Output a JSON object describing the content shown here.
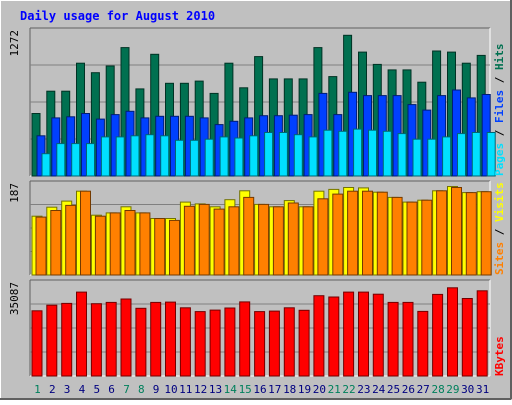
{
  "chart_data": [
    {
      "type": "bar",
      "title": "Daily usage for August 2010",
      "ylabel_max": "1272",
      "legend": [
        "Pages",
        "Files",
        "Hits"
      ],
      "legend_separator": "/",
      "categories": [
        "1",
        "2",
        "3",
        "4",
        "5",
        "6",
        "7",
        "8",
        "9",
        "10",
        "11",
        "12",
        "13",
        "14",
        "15",
        "16",
        "17",
        "18",
        "19",
        "20",
        "21",
        "22",
        "23",
        "24",
        "25",
        "26",
        "27",
        "28",
        "29",
        "30",
        "31"
      ],
      "ylim": [
        0,
        1272
      ],
      "series": [
        {
          "name": "Hits",
          "values": [
            560,
            760,
            760,
            1010,
            925,
            985,
            1150,
            780,
            1090,
            830,
            830,
            850,
            740,
            1010,
            790,
            1070,
            870,
            870,
            870,
            1150,
            890,
            1260,
            1110,
            1000,
            950,
            950,
            840,
            1120,
            1110,
            1010,
            1080
          ]
        },
        {
          "name": "Files",
          "values": [
            360,
            520,
            530,
            560,
            510,
            550,
            580,
            520,
            535,
            535,
            535,
            520,
            460,
            490,
            520,
            540,
            540,
            545,
            550,
            740,
            550,
            750,
            720,
            720,
            720,
            640,
            590,
            720,
            770,
            700,
            730
          ]
        },
        {
          "name": "Pages",
          "values": [
            200,
            290,
            290,
            290,
            350,
            350,
            360,
            370,
            360,
            320,
            320,
            330,
            350,
            340,
            360,
            390,
            390,
            370,
            350,
            410,
            400,
            420,
            410,
            400,
            380,
            330,
            330,
            350,
            380,
            390,
            390
          ]
        }
      ],
      "colors": {
        "Hits": "#007050",
        "Files": "#0040ff",
        "Pages": "#00e0ff"
      }
    },
    {
      "type": "bar",
      "ylabel_max": "187",
      "legend": [
        "Sites",
        "Visits"
      ],
      "legend_separator": "/",
      "categories": [
        "1",
        "2",
        "3",
        "4",
        "5",
        "6",
        "7",
        "8",
        "9",
        "10",
        "11",
        "12",
        "13",
        "14",
        "15",
        "16",
        "17",
        "18",
        "19",
        "20",
        "21",
        "22",
        "23",
        "24",
        "25",
        "26",
        "27",
        "28",
        "29",
        "30",
        "31"
      ],
      "ylim": [
        0,
        187
      ],
      "series": [
        {
          "name": "Visits",
          "values": [
            125,
            144,
            157,
            178,
            127,
            132,
            145,
            132,
            120,
            120,
            155,
            151,
            145,
            160,
            179,
            150,
            145,
            158,
            145,
            178,
            182,
            186,
            185,
            176,
            165,
            155,
            159,
            179,
            188,
            175,
            177
          ]
        },
        {
          "name": "Sites",
          "values": [
            123,
            137,
            148,
            178,
            125,
            132,
            137,
            132,
            120,
            116,
            146,
            150,
            140,
            145,
            165,
            150,
            145,
            153,
            145,
            162,
            172,
            178,
            178,
            176,
            165,
            155,
            159,
            179,
            186,
            175,
            177
          ]
        }
      ],
      "colors": {
        "Visits": "#ffff00",
        "Sites": "#ff8000"
      }
    },
    {
      "type": "bar",
      "ylabel_max": "35087",
      "legend": [
        "KBytes"
      ],
      "categories": [
        "1",
        "2",
        "3",
        "4",
        "5",
        "6",
        "7",
        "8",
        "9",
        "10",
        "11",
        "12",
        "13",
        "14",
        "15",
        "16",
        "17",
        "18",
        "19",
        "20",
        "21",
        "22",
        "23",
        "24",
        "25",
        "26",
        "27",
        "28",
        "29",
        "30",
        "31"
      ],
      "ylim": [
        0,
        35087
      ],
      "series": [
        {
          "name": "KBytes",
          "values": [
            25400,
            27600,
            28300,
            32700,
            28200,
            28700,
            30000,
            26400,
            28700,
            28800,
            26600,
            25100,
            25700,
            26500,
            28900,
            25100,
            25300,
            26600,
            25600,
            31300,
            30800,
            32700,
            32700,
            31900,
            28700,
            28700,
            25200,
            31800,
            34400,
            30200,
            33200
          ]
        }
      ],
      "colors": {
        "KBytes": "#ff0000"
      }
    }
  ],
  "weekend_days": [
    "1",
    "7",
    "8",
    "14",
    "15",
    "21",
    "22",
    "28",
    "29"
  ],
  "colors": {
    "title": "#0000ff",
    "background": "#c0c0c0",
    "weekend": "#00805c",
    "weekday": "#000080"
  }
}
